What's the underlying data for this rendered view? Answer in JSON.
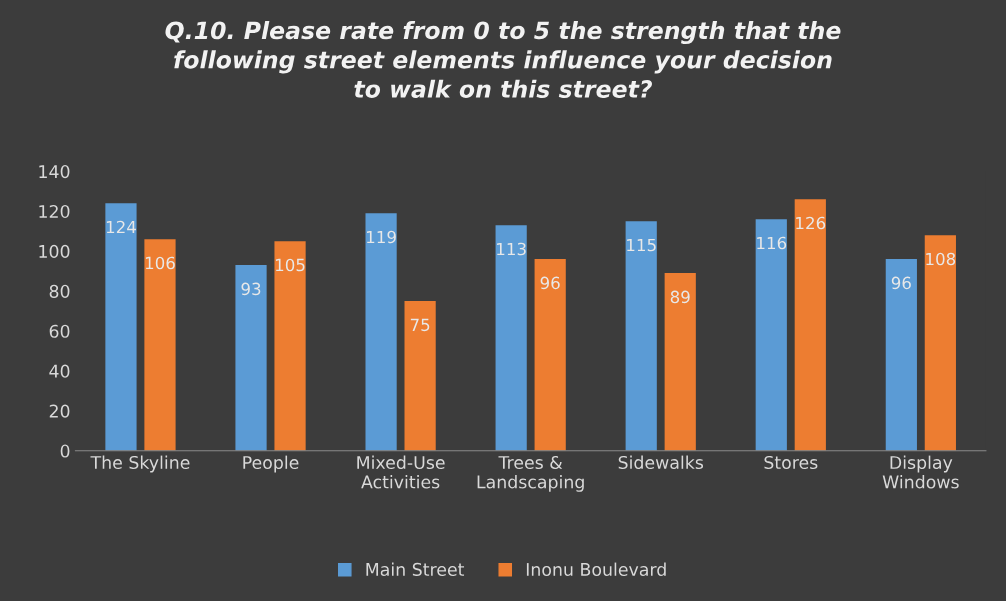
{
  "chart_data": {
    "type": "bar",
    "title": "Q.10. Please rate from 0 to 5 the strength that the\nfollowing street elements influence your decision\nto walk on this street?",
    "categories": [
      "The Skyline",
      "People",
      "Mixed-Use\nActivities",
      "Trees &\nLandscaping",
      "Sidewalks",
      "Stores",
      "Display\nWindows"
    ],
    "series": [
      {
        "name": "Main Street",
        "color": "#5b9bd5",
        "values": [
          124,
          93,
          119,
          113,
          115,
          116,
          96
        ]
      },
      {
        "name": "Inonu Boulevard",
        "color": "#ed7d31",
        "values": [
          106,
          105,
          75,
          96,
          89,
          126,
          108
        ]
      }
    ],
    "ylim": [
      0,
      140
    ],
    "yticks": [
      0,
      20,
      40,
      60,
      80,
      100,
      120,
      140
    ],
    "grid": false,
    "legend": "bottom",
    "data_labels": true
  }
}
